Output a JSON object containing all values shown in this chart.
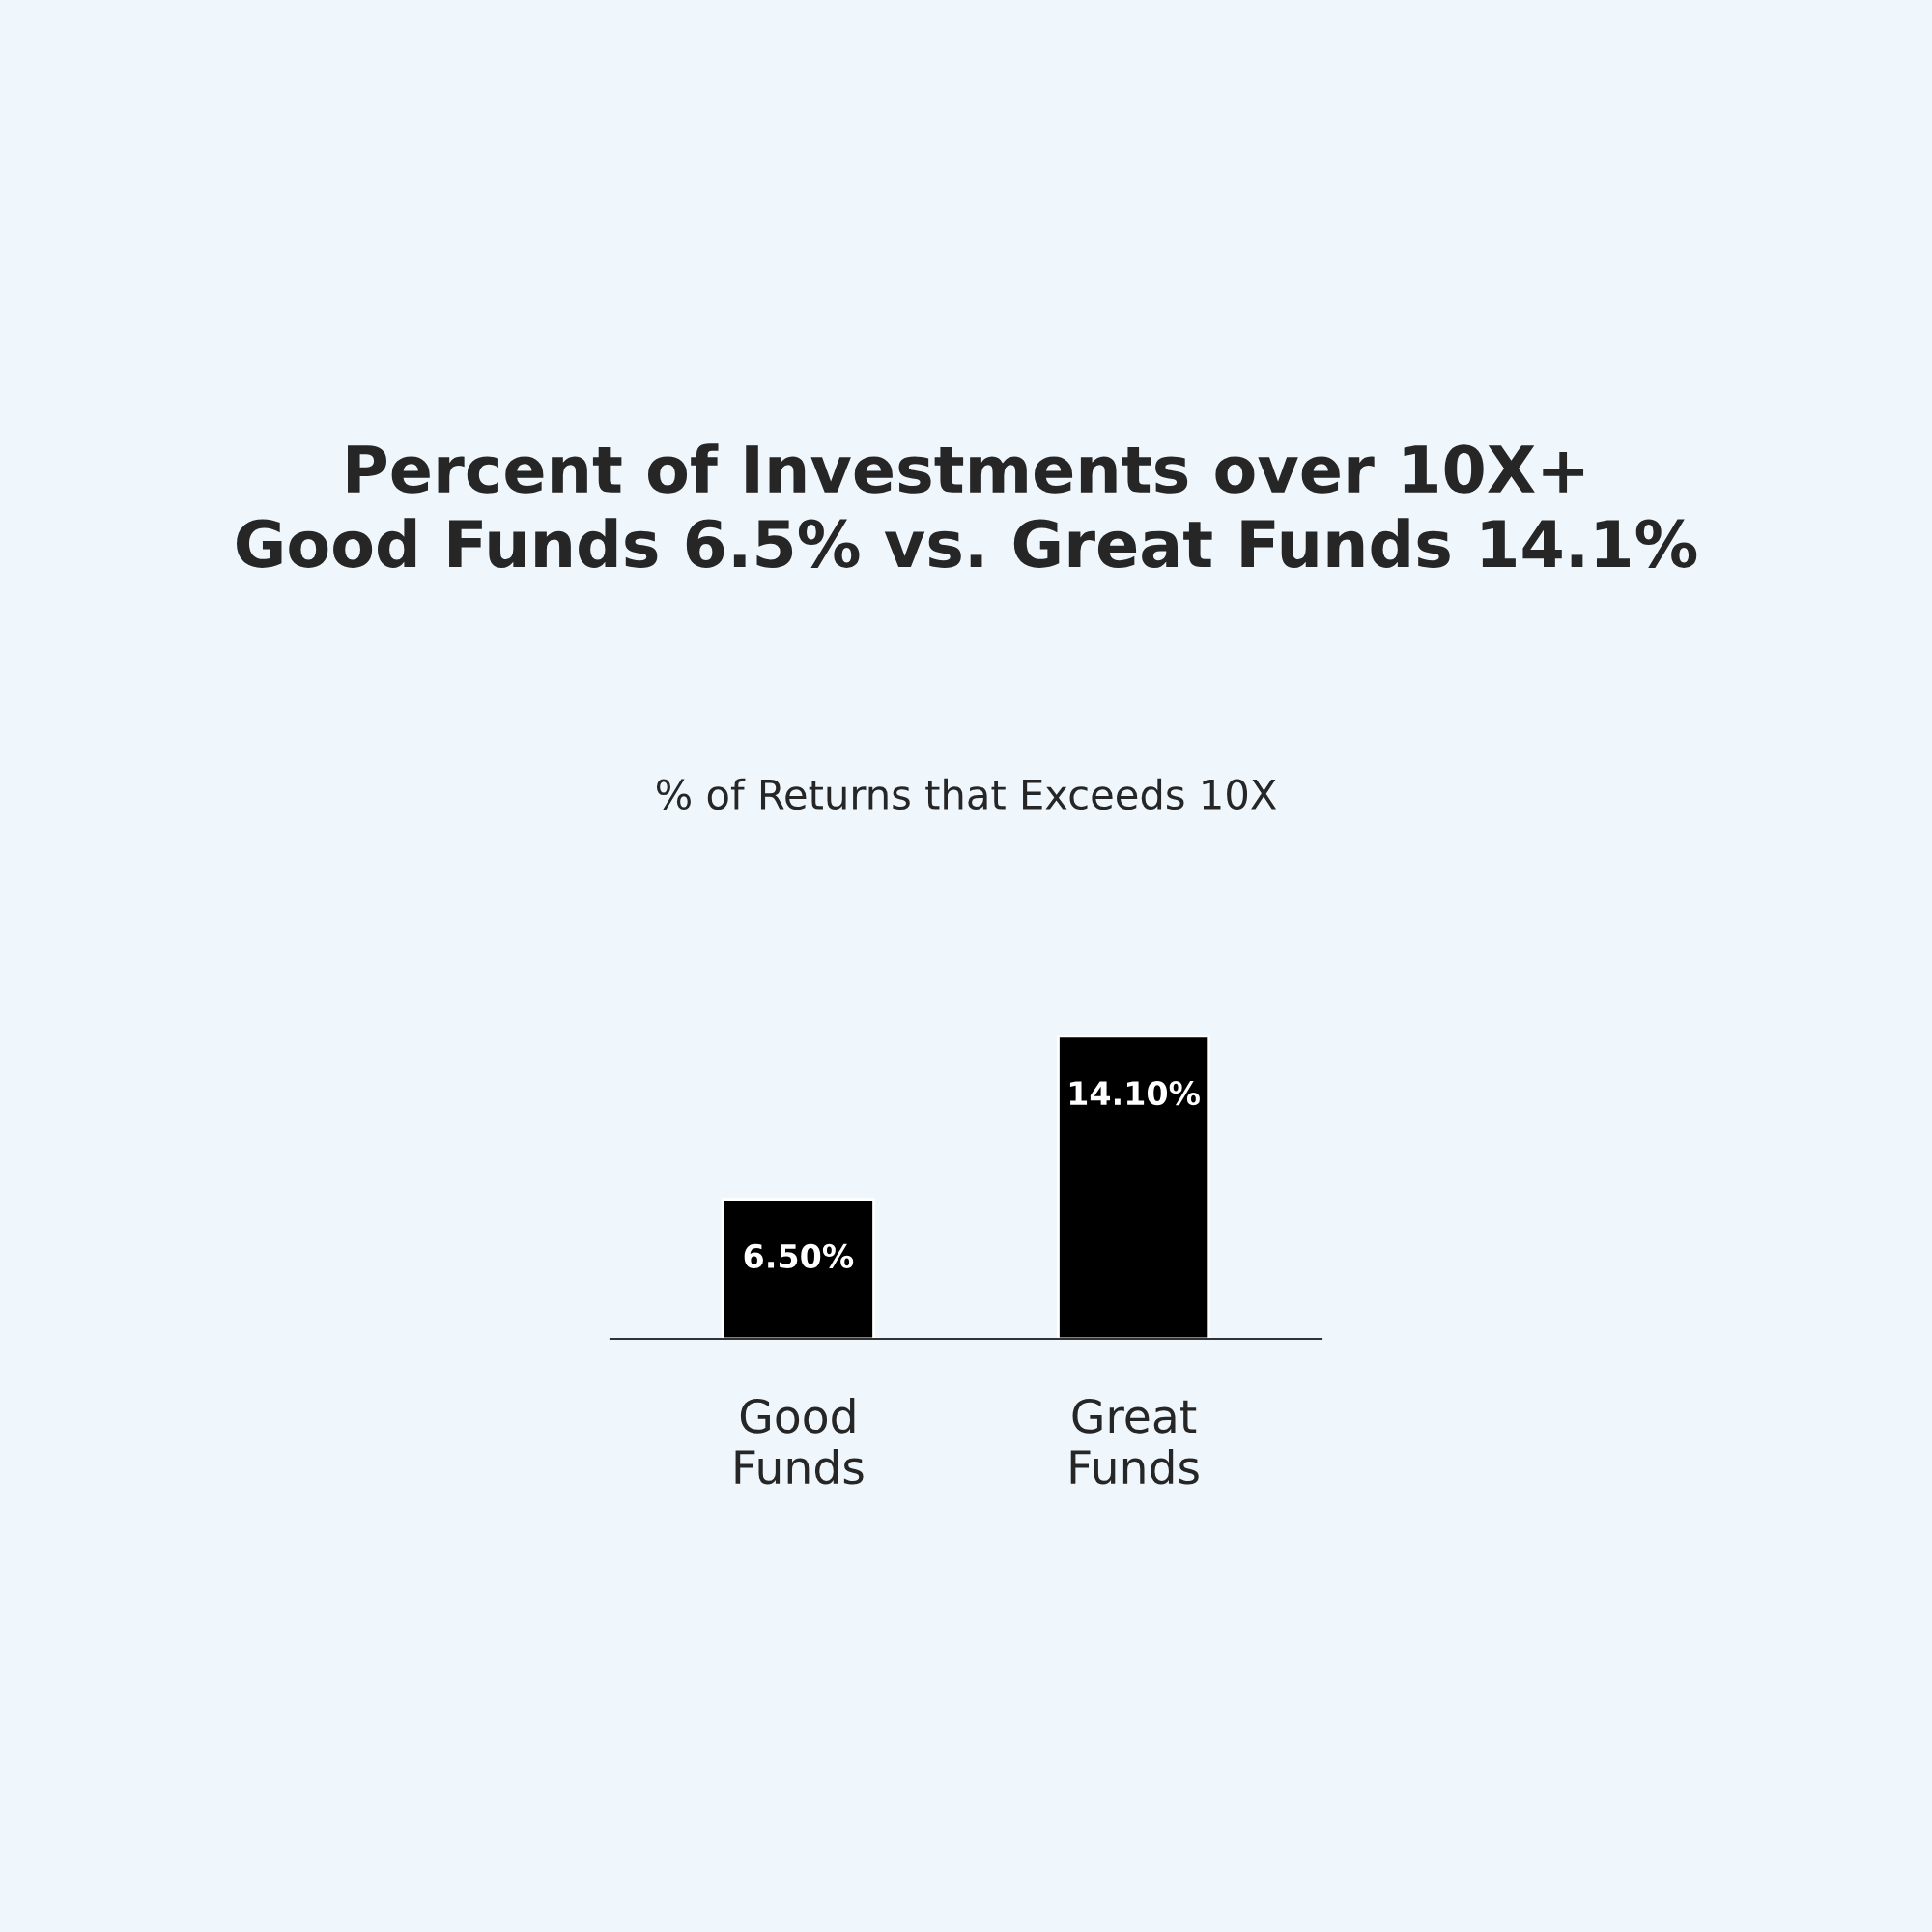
{
  "chart_data": {
    "type": "bar",
    "title": "Percent of Investments over 10X+\nGood Funds 6.5% vs. Great Funds 14.1%",
    "subtitle": "% of Returns that Exceeds 10X",
    "categories": [
      "Good\nFunds",
      "Great\nFunds"
    ],
    "values": [
      6.5,
      14.1
    ],
    "color": "#000000",
    "value_labels": [
      "6.50%",
      "14.10%"
    ],
    "grid": false,
    "legend": false
  }
}
